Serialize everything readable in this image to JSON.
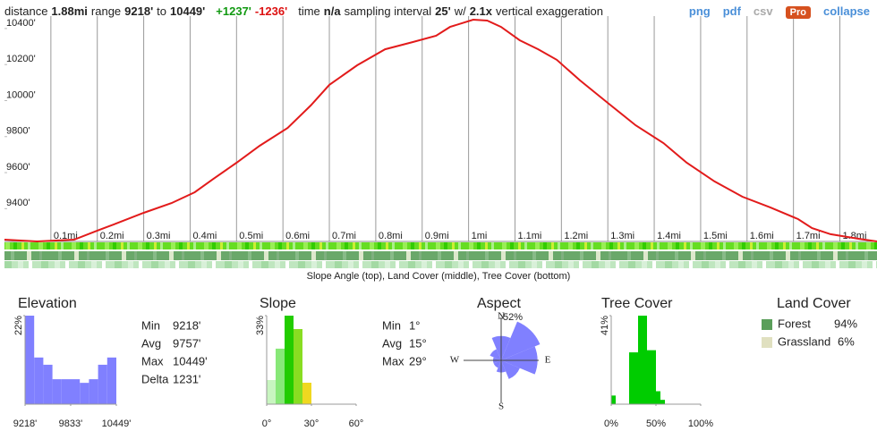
{
  "header": {
    "items": [
      {
        "text": "distance"
      },
      {
        "text": "1.88mi",
        "style": "bold"
      },
      {
        "text": "range"
      },
      {
        "text": "9218'",
        "style": "bold"
      },
      {
        "text": "to"
      },
      {
        "text": "10449'",
        "style": "bold"
      },
      {
        "text": "+1237'",
        "style": "gain"
      },
      {
        "text": "-1236'",
        "style": "loss"
      },
      {
        "text": "time"
      },
      {
        "text": "n/a",
        "style": "bold"
      },
      {
        "text": "sampling interval"
      },
      {
        "text": "25'",
        "style": "bold"
      },
      {
        "text": "w/"
      },
      {
        "text": "2.1x",
        "style": "bold"
      },
      {
        "text": "vertical exaggeration"
      }
    ],
    "links": [
      {
        "text": "png",
        "style": "link"
      },
      {
        "text": "pdf",
        "style": "link"
      },
      {
        "text": "csv",
        "style": "disabled"
      },
      {
        "text": "Pro",
        "style": "badge"
      },
      {
        "text": "collapse",
        "style": "link"
      }
    ]
  },
  "chart_data": [
    {
      "type": "line",
      "color": "#e21b1b",
      "x": [
        0,
        0.07,
        0.15,
        0.2,
        0.24,
        0.3,
        0.36,
        0.41,
        0.45,
        0.5,
        0.55,
        0.61,
        0.66,
        0.7,
        0.76,
        0.82,
        0.88,
        0.93,
        0.96,
        1.01,
        1.04,
        1.07,
        1.11,
        1.15,
        1.19,
        1.24,
        1.3,
        1.36,
        1.42,
        1.47,
        1.53,
        1.59,
        1.65,
        1.71,
        1.74,
        1.78,
        1.84,
        1.88
      ],
      "values": [
        9228,
        9218,
        9228,
        9278,
        9317,
        9377,
        9431,
        9491,
        9565,
        9655,
        9749,
        9848,
        9973,
        10087,
        10196,
        10285,
        10325,
        10360,
        10409,
        10449,
        10444,
        10409,
        10335,
        10285,
        10226,
        10112,
        9987,
        9863,
        9764,
        9655,
        9551,
        9466,
        9407,
        9342,
        9292,
        9258,
        9233,
        9218
      ],
      "xlim": [
        0,
        1.88
      ],
      "xticks": [
        {
          "value": 0.1,
          "label": "0.1mi"
        },
        {
          "value": 0.2,
          "label": "0.2mi"
        },
        {
          "value": 0.3,
          "label": "0.3mi"
        },
        {
          "value": 0.4,
          "label": "0.4mi"
        },
        {
          "value": 0.5,
          "label": "0.5mi"
        },
        {
          "value": 0.6,
          "label": "0.6mi"
        },
        {
          "value": 0.7,
          "label": "0.7mi"
        },
        {
          "value": 0.8,
          "label": "0.8mi"
        },
        {
          "value": 0.9,
          "label": "0.9mi"
        },
        {
          "value": 1.0,
          "label": "1mi"
        },
        {
          "value": 1.1,
          "label": "1.1mi"
        },
        {
          "value": 1.2,
          "label": "1.2mi"
        },
        {
          "value": 1.3,
          "label": "1.3mi"
        },
        {
          "value": 1.4,
          "label": "1.4mi"
        },
        {
          "value": 1.5,
          "label": "1.5mi"
        },
        {
          "value": 1.6,
          "label": "1.6mi"
        },
        {
          "value": 1.7,
          "label": "1.7mi"
        },
        {
          "value": 1.8,
          "label": "1.8mi"
        }
      ],
      "ylim": [
        9218,
        10469
      ],
      "yticks": [
        {
          "value": 9400,
          "label": "9400'"
        },
        {
          "value": 9600,
          "label": "9600'"
        },
        {
          "value": 9800,
          "label": "9800'"
        },
        {
          "value": 10000,
          "label": "10000'"
        },
        {
          "value": 10200,
          "label": "10200'"
        },
        {
          "value": 10400,
          "label": "10400'"
        }
      ]
    },
    {
      "type": "histogram",
      "title": "Elevation",
      "color": "#8080ff",
      "bins": [
        9218,
        9341.1,
        9464.2,
        9587.3,
        9710.4,
        9833.5,
        9956.6,
        10079.7,
        10202.8,
        10325.9,
        10449
      ],
      "values": [
        22,
        11.6,
        9.8,
        6.2,
        6.2,
        6.2,
        5.3,
        6.2,
        9.8,
        11.6
      ],
      "xlim": [
        9218,
        10449
      ],
      "xticks": [
        {
          "value": 9218,
          "label": "9218'"
        },
        {
          "value": 9833,
          "label": "9833'"
        },
        {
          "value": 10449,
          "label": "10449'"
        }
      ],
      "ylim": [
        0,
        22
      ],
      "yticks": [
        {
          "value": 22,
          "label": "22%"
        }
      ]
    },
    {
      "type": "histogram",
      "title": "Slope",
      "bins": [
        0,
        6,
        12,
        18,
        24,
        30
      ],
      "values": [
        9,
        20.7,
        33,
        28,
        8
      ],
      "colors": [
        "#c8f5c0",
        "#88e878",
        "#22cc00",
        "#88dd22",
        "#f0d820"
      ],
      "xlim": [
        0,
        60
      ],
      "xticks": [
        {
          "value": 0,
          "label": "0°"
        },
        {
          "value": 30,
          "label": "30°"
        },
        {
          "value": 60,
          "label": "60°"
        }
      ],
      "ylim": [
        0,
        33
      ],
      "yticks": [
        {
          "value": 33,
          "label": "33%"
        }
      ]
    },
    {
      "type": "rose",
      "title": "Aspect",
      "color": "#8080ff",
      "categories": [
        "N",
        null,
        "E",
        null,
        "S",
        null,
        "W",
        null
      ],
      "values": [
        30,
        52,
        45,
        25,
        15,
        10,
        10,
        15
      ],
      "rlim": [
        0,
        52
      ],
      "rticks": [
        {
          "value": 52,
          "label": "52%"
        }
      ]
    },
    {
      "type": "histogram",
      "title": "Tree Cover",
      "color": "#00cc00",
      "bins": [
        0,
        5,
        10,
        15,
        20,
        25,
        30,
        35,
        40,
        45,
        50,
        55,
        60
      ],
      "values": [
        4,
        0,
        0,
        0,
        24,
        24,
        41,
        41,
        25,
        25,
        6,
        2
      ],
      "xlim": [
        0,
        100
      ],
      "xticks": [
        {
          "value": 0,
          "label": "0%"
        },
        {
          "value": 50,
          "label": "50%"
        },
        {
          "value": 100,
          "label": "100%"
        }
      ],
      "ylim": [
        0,
        41
      ],
      "yticks": [
        {
          "value": 41,
          "label": "41%"
        }
      ]
    }
  ],
  "strip_caption": "Slope Angle (top), Land Cover (middle), Tree Cover (bottom)",
  "elevation_stats": [
    {
      "label": "Min",
      "value": "9218'"
    },
    {
      "label": "Avg",
      "value": "9757'"
    },
    {
      "label": "Max",
      "value": "10449'"
    },
    {
      "label": "Delta",
      "value": "1231'"
    }
  ],
  "slope_stats": [
    {
      "label": "Min",
      "value": "1°"
    },
    {
      "label": "Avg",
      "value": "15°"
    },
    {
      "label": "Max",
      "value": "29°"
    }
  ],
  "land_cover": {
    "title": "Land Cover",
    "items": [
      {
        "name": "Forest",
        "color": "#5a9e5a",
        "share": "94%"
      },
      {
        "name": "Grassland",
        "color": "#e0e0c0",
        "share": "6%"
      }
    ]
  }
}
